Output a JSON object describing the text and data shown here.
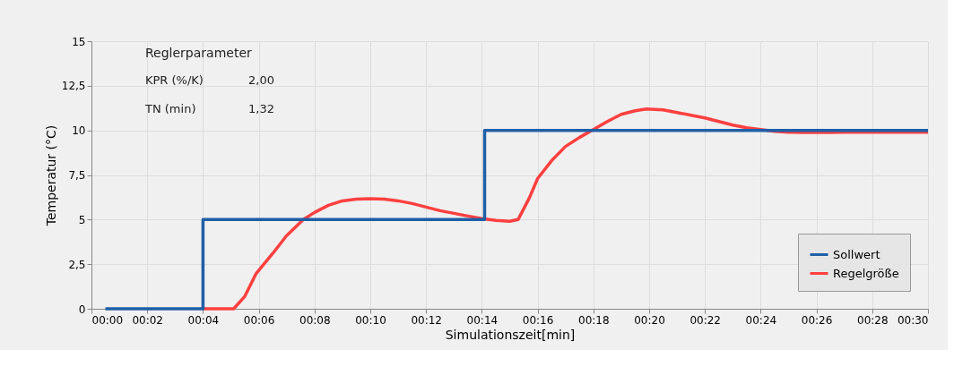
{
  "chart_data": {
    "type": "line",
    "xlabel": "Simulationszeit[min]",
    "ylabel": "Temperatur (°C)",
    "xlim": [
      0,
      30
    ],
    "ylim": [
      0,
      15
    ],
    "xticks": [
      {
        "value": 0,
        "label": "00:00"
      },
      {
        "value": 2,
        "label": "00:02"
      },
      {
        "value": 4,
        "label": "00:04"
      },
      {
        "value": 6,
        "label": "00:06"
      },
      {
        "value": 8,
        "label": "00:08"
      },
      {
        "value": 10,
        "label": "00:10"
      },
      {
        "value": 12,
        "label": "00:12"
      },
      {
        "value": 14,
        "label": "00:14"
      },
      {
        "value": 16,
        "label": "00:16"
      },
      {
        "value": 18,
        "label": "00:18"
      },
      {
        "value": 20,
        "label": "00:20"
      },
      {
        "value": 22,
        "label": "00:22"
      },
      {
        "value": 24,
        "label": "00:24"
      },
      {
        "value": 26,
        "label": "00:26"
      },
      {
        "value": 28,
        "label": "00:28"
      },
      {
        "value": 30,
        "label": "00:30"
      }
    ],
    "yticks": [
      0,
      {
        "value": 2.5,
        "label": "2,5"
      },
      5,
      {
        "value": 7.5,
        "label": "7,5"
      },
      10,
      {
        "value": 12.5,
        "label": "12,5"
      },
      15
    ],
    "grid": true,
    "legend": "bottom right",
    "series": [
      {
        "name": "Sollwert",
        "type": "step",
        "color": "#1f5fa6",
        "x": [
          0.5,
          4,
          14.1,
          30
        ],
        "values": [
          0,
          5,
          10,
          10
        ]
      },
      {
        "name": "Regelgröße",
        "type": "line",
        "color": "#ff4040",
        "x": [
          4,
          5.1,
          5.5,
          5.9,
          6.5,
          7,
          7.6,
          8,
          8.5,
          9,
          9.5,
          10,
          10.5,
          11,
          11.5,
          12,
          12.5,
          13,
          13.5,
          14,
          14.5,
          15,
          15.3,
          15.7,
          16,
          16.5,
          17,
          17.5,
          18,
          18.5,
          19,
          19.5,
          19.9,
          20.5,
          21,
          21.5,
          22,
          22.5,
          23,
          23.5,
          24,
          24.5,
          25,
          25.5,
          26,
          26.5,
          27,
          27.5,
          28,
          28.5,
          29,
          29.5,
          30
        ],
        "values": [
          0,
          0,
          0.7,
          1.96,
          3.1,
          4.1,
          5,
          5.4,
          5.8,
          6.05,
          6.15,
          6.17,
          6.15,
          6.05,
          5.9,
          5.7,
          5.5,
          5.35,
          5.2,
          5.05,
          4.95,
          4.9,
          5,
          6.2,
          7.3,
          8.3,
          9.1,
          9.6,
          10.05,
          10.5,
          10.9,
          11.1,
          11.2,
          11.15,
          11,
          10.85,
          10.7,
          10.5,
          10.3,
          10.15,
          10.05,
          9.95,
          9.9,
          9.88,
          9.88,
          9.88,
          9.9,
          9.9,
          9.9,
          9.9,
          9.9,
          9.9,
          9.9
        ]
      }
    ],
    "annotations": [
      "Reglerparameter",
      "KPR (%/K)",
      "2,00",
      "TN (min)",
      "1,32"
    ]
  }
}
